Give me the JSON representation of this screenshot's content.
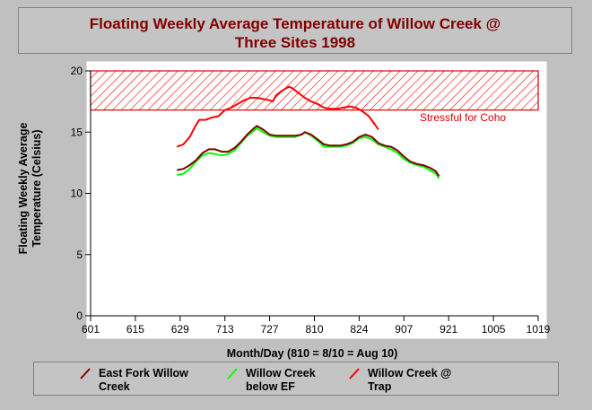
{
  "chart_data": {
    "type": "line",
    "title": "Floating Weekly Average Temperature of Willow Creek @\nThree Sites 1998",
    "xlabel": "Month/Day (810 = 8/10 = Aug 10)",
    "ylabel": "Floating Weekly Average\nTemperature (Celsius)",
    "xlim": [
      601,
      1019
    ],
    "ylim": [
      0,
      20
    ],
    "x_ticks": [
      "601",
      "615",
      "629",
      "713",
      "727",
      "810",
      "824",
      "907",
      "921",
      "1005",
      "1019"
    ],
    "y_ticks": [
      "0",
      "5",
      "10",
      "15",
      "20"
    ],
    "grid": false,
    "legend_position": "bottom",
    "stress_band": {
      "label": "Stressful for Coho",
      "from": 16.8,
      "to": 20,
      "color": "#dd0000"
    },
    "series": [
      {
        "name": "East Fork Willow\nCreek",
        "color": "#800000",
        "points": [
          [
            27,
            11.9
          ],
          [
            29,
            12.0
          ],
          [
            31,
            12.3
          ],
          [
            33,
            12.7
          ],
          [
            35,
            13.3
          ],
          [
            37,
            13.6
          ],
          [
            39,
            13.6
          ],
          [
            41,
            13.4
          ],
          [
            43,
            13.4
          ],
          [
            45,
            13.7
          ],
          [
            47,
            14.2
          ],
          [
            49,
            14.8
          ],
          [
            51,
            15.3
          ],
          [
            52,
            15.5
          ],
          [
            54,
            15.2
          ],
          [
            56,
            14.8
          ],
          [
            58,
            14.7
          ],
          [
            60,
            14.7
          ],
          [
            62,
            14.7
          ],
          [
            64,
            14.7
          ],
          [
            66,
            14.8
          ],
          [
            67,
            15.0
          ],
          [
            69,
            14.8
          ],
          [
            71,
            14.4
          ],
          [
            73,
            14.0
          ],
          [
            75,
            13.9
          ],
          [
            78,
            13.9
          ],
          [
            80,
            14.0
          ],
          [
            82,
            14.2
          ],
          [
            84,
            14.6
          ],
          [
            86,
            14.8
          ],
          [
            88,
            14.6
          ],
          [
            90,
            14.1
          ],
          [
            92,
            13.9
          ],
          [
            94,
            13.8
          ],
          [
            96,
            13.5
          ],
          [
            98,
            13.0
          ],
          [
            100,
            12.6
          ],
          [
            102,
            12.4
          ],
          [
            104,
            12.3
          ],
          [
            106,
            12.1
          ],
          [
            108,
            11.8
          ],
          [
            109,
            11.4
          ]
        ]
      },
      {
        "name": "Willow Creek\nbelow EF",
        "color": "#00ff00",
        "points": [
          [
            27,
            11.5
          ],
          [
            29,
            11.6
          ],
          [
            31,
            12.0
          ],
          [
            33,
            12.6
          ],
          [
            35,
            13.1
          ],
          [
            37,
            13.3
          ],
          [
            39,
            13.2
          ],
          [
            41,
            13.1
          ],
          [
            43,
            13.2
          ],
          [
            45,
            13.5
          ],
          [
            47,
            14.1
          ],
          [
            49,
            14.7
          ],
          [
            51,
            15.1
          ],
          [
            52,
            15.3
          ],
          [
            54,
            15.0
          ],
          [
            56,
            14.7
          ],
          [
            58,
            14.6
          ],
          [
            60,
            14.6
          ],
          [
            62,
            14.6
          ],
          [
            64,
            14.6
          ],
          [
            66,
            14.8
          ],
          [
            67,
            15.0
          ],
          [
            69,
            14.7
          ],
          [
            71,
            14.3
          ],
          [
            73,
            13.8
          ],
          [
            75,
            13.8
          ],
          [
            78,
            13.8
          ],
          [
            80,
            13.9
          ],
          [
            82,
            14.1
          ],
          [
            84,
            14.5
          ],
          [
            86,
            14.6
          ],
          [
            88,
            14.4
          ],
          [
            90,
            14.0
          ],
          [
            92,
            13.8
          ],
          [
            94,
            13.6
          ],
          [
            96,
            13.3
          ],
          [
            98,
            12.8
          ],
          [
            100,
            12.5
          ],
          [
            102,
            12.3
          ],
          [
            104,
            12.2
          ],
          [
            106,
            11.9
          ],
          [
            108,
            11.6
          ],
          [
            109,
            11.2
          ]
        ]
      },
      {
        "name": "Willow Creek @\nTrap",
        "color": "#ff0000",
        "points": [
          [
            27,
            13.8
          ],
          [
            29,
            14.0
          ],
          [
            31,
            14.6
          ],
          [
            33,
            15.6
          ],
          [
            34,
            16.0
          ],
          [
            36,
            16.0
          ],
          [
            38,
            16.2
          ],
          [
            40,
            16.3
          ],
          [
            42,
            16.8
          ],
          [
            44,
            17.0
          ],
          [
            46,
            17.3
          ],
          [
            48,
            17.6
          ],
          [
            50,
            17.8
          ],
          [
            52,
            17.8
          ],
          [
            54,
            17.7
          ],
          [
            56,
            17.6
          ],
          [
            57,
            17.5
          ],
          [
            58,
            18.0
          ],
          [
            60,
            18.4
          ],
          [
            62,
            18.7
          ],
          [
            63,
            18.6
          ],
          [
            65,
            18.2
          ],
          [
            67,
            17.8
          ],
          [
            69,
            17.5
          ],
          [
            71,
            17.3
          ],
          [
            73,
            17.0
          ],
          [
            75,
            16.9
          ],
          [
            77,
            16.9
          ],
          [
            79,
            17.0
          ],
          [
            81,
            17.1
          ],
          [
            83,
            17.0
          ],
          [
            85,
            16.7
          ],
          [
            87,
            16.3
          ],
          [
            89,
            15.6
          ],
          [
            90,
            15.2
          ]
        ]
      }
    ]
  }
}
